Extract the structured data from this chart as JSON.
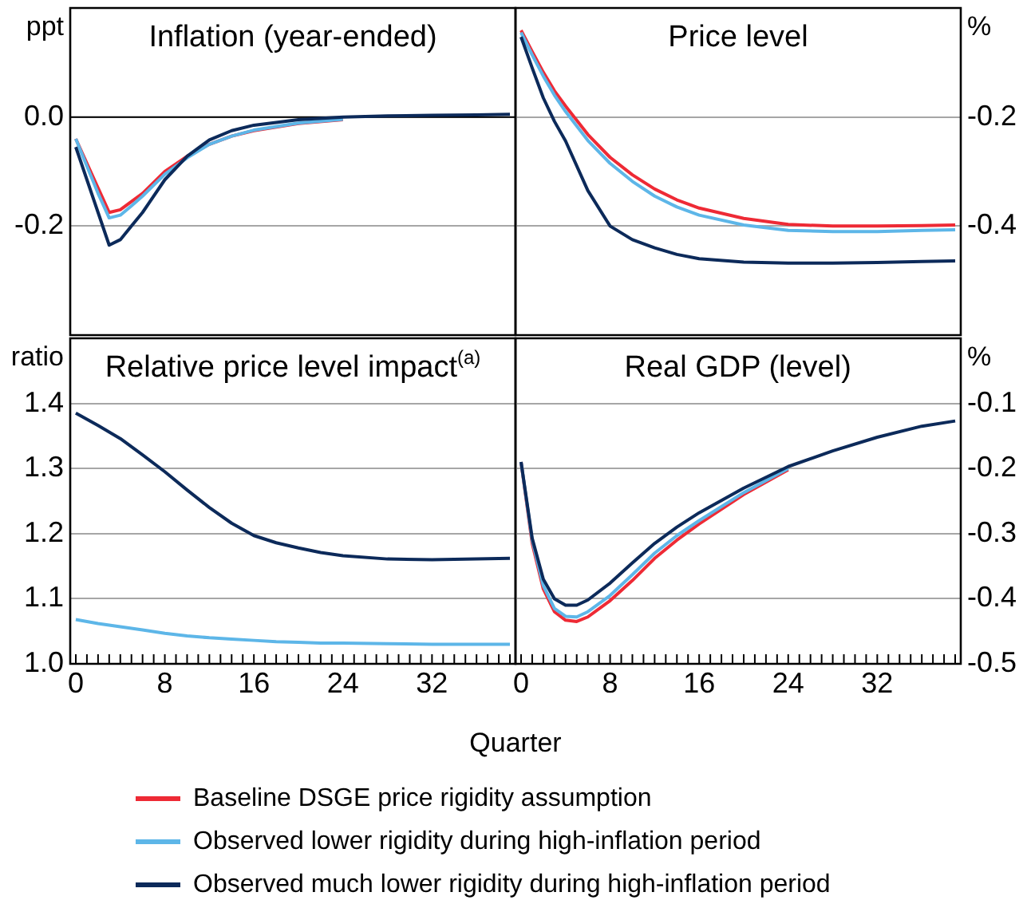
{
  "chart_data": [
    {
      "type": "line",
      "title": "Inflation (year-ended)",
      "ylabel": "ppt",
      "tick_labels": "y",
      "grid": "y",
      "legend": "bottom",
      "marker": "none",
      "xlim": [
        -0.5,
        39.5
      ],
      "ylim": [
        -0.4,
        0.2
      ],
      "yticks": [
        {
          "value": 0,
          "label": "0.0"
        },
        -0.2
      ],
      "ref_lines": [
        {
          "axis": "y",
          "value": 0,
          "color": "#000000"
        }
      ],
      "x": [
        0,
        1,
        2,
        3,
        4,
        5,
        6,
        8,
        10,
        12,
        14,
        16,
        20,
        24,
        28,
        32,
        36,
        39
      ],
      "series": [
        {
          "name": "Baseline DSGE price rigidity assumption",
          "color": "#ee2a35",
          "values": [
            -0.04,
            -0.085,
            -0.13,
            -0.175,
            -0.17,
            -0.155,
            -0.14,
            -0.1,
            -0.072,
            -0.05,
            -0.035,
            -0.025,
            -0.012,
            -0.005,
            null,
            null,
            null,
            null
          ]
        },
        {
          "name": "Observed lower rigidity during high-inflation period",
          "color": "#5db6e8",
          "values": [
            -0.04,
            -0.09,
            -0.14,
            -0.185,
            -0.18,
            -0.163,
            -0.145,
            -0.105,
            -0.075,
            -0.05,
            -0.035,
            -0.024,
            -0.011,
            -0.004,
            null,
            null,
            null,
            null
          ]
        },
        {
          "name": "Observed much lower rigidity during high-inflation period",
          "color": "#0c2a5a",
          "values": [
            -0.055,
            -0.115,
            -0.175,
            -0.235,
            -0.225,
            -0.2,
            -0.175,
            -0.115,
            -0.072,
            -0.042,
            -0.025,
            -0.015,
            -0.005,
            0,
            0.002,
            0.003,
            0.004,
            0.005
          ]
        }
      ]
    },
    {
      "type": "line",
      "title": "Price level",
      "y2label": "%",
      "tick_labels": "y",
      "grid": "y",
      "marker": "none",
      "xlim": [
        -0.5,
        39.5
      ],
      "y2lim": [
        -0.6,
        0
      ],
      "y2ticks": [
        -0.2,
        -0.4
      ],
      "x": [
        0,
        1,
        2,
        3,
        4,
        6,
        8,
        10,
        12,
        14,
        16,
        20,
        24,
        28,
        32,
        36,
        39
      ],
      "series": [
        {
          "axis": "y2",
          "color": "#ee2a35",
          "values": [
            -0.041,
            -0.08,
            -0.118,
            -0.152,
            -0.18,
            -0.232,
            -0.274,
            -0.306,
            -0.332,
            -0.352,
            -0.367,
            -0.386,
            -0.397,
            -0.4,
            -0.4,
            -0.399,
            -0.398
          ]
        },
        {
          "axis": "y2",
          "color": "#5db6e8",
          "values": [
            -0.045,
            -0.086,
            -0.125,
            -0.16,
            -0.19,
            -0.243,
            -0.285,
            -0.318,
            -0.345,
            -0.365,
            -0.38,
            -0.398,
            -0.408,
            -0.41,
            -0.41,
            -0.408,
            -0.407
          ]
        },
        {
          "axis": "y2",
          "color": "#0c2a5a",
          "values": [
            -0.053,
            -0.11,
            -0.165,
            -0.208,
            -0.244,
            -0.335,
            -0.4,
            -0.425,
            -0.44,
            -0.452,
            -0.46,
            -0.466,
            -0.468,
            -0.468,
            -0.467,
            -0.465,
            -0.464
          ]
        }
      ]
    },
    {
      "type": "line",
      "title": "Relative price level impact$^{(a)}$",
      "ylabel": "ratio",
      "xlabel": "Quarter",
      "grid": "y",
      "marker": "none",
      "xlim": [
        -0.5,
        39.5
      ],
      "xticks": [
        0,
        {
          "value": 1,
          "label": null
        },
        {
          "value": 2,
          "label": null
        },
        {
          "value": 3,
          "label": null
        },
        {
          "value": 4,
          "label": null
        },
        {
          "value": 5,
          "label": null
        },
        {
          "value": 6,
          "label": null
        },
        {
          "value": 7,
          "label": null
        },
        8,
        {
          "value": 9,
          "label": null
        },
        {
          "value": 10,
          "label": null
        },
        {
          "value": 11,
          "label": null
        },
        {
          "value": 12,
          "label": null
        },
        {
          "value": 13,
          "label": null
        },
        {
          "value": 14,
          "label": null
        },
        {
          "value": 15,
          "label": null
        },
        16,
        {
          "value": 17,
          "label": null
        },
        {
          "value": 18,
          "label": null
        },
        {
          "value": 19,
          "label": null
        },
        {
          "value": 20,
          "label": null
        },
        {
          "value": 21,
          "label": null
        },
        {
          "value": 22,
          "label": null
        },
        {
          "value": 23,
          "label": null
        },
        24,
        {
          "value": 25,
          "label": null
        },
        {
          "value": 26,
          "label": null
        },
        {
          "value": 27,
          "label": null
        },
        {
          "value": 28,
          "label": null
        },
        {
          "value": 29,
          "label": null
        },
        {
          "value": 30,
          "label": null
        },
        {
          "value": 31,
          "label": null
        },
        32,
        {
          "value": 33,
          "label": null
        },
        {
          "value": 34,
          "label": null
        },
        {
          "value": 35,
          "label": null
        },
        {
          "value": 36,
          "label": null
        },
        {
          "value": 37,
          "label": null
        },
        {
          "value": 38,
          "label": null
        },
        {
          "value": 39,
          "label": null
        }
      ],
      "ylim": [
        1.0,
        1.5
      ],
      "yticks": [
        {
          "value": 1.0,
          "label": "1.0"
        },
        1.1,
        1.2,
        1.3,
        1.4
      ],
      "x": [
        0,
        2,
        4,
        6,
        8,
        10,
        12,
        14,
        16,
        18,
        20,
        22,
        24,
        28,
        32,
        36,
        39
      ],
      "series": [
        {
          "color": "#0c2a5a",
          "values": [
            1.385,
            1.366,
            1.346,
            1.321,
            1.295,
            1.267,
            1.24,
            1.216,
            1.197,
            1.186,
            1.178,
            1.171,
            1.166,
            1.161,
            1.16,
            1.161,
            1.162
          ]
        },
        {
          "color": "#5db6e8",
          "values": [
            1.068,
            1.062,
            1.057,
            1.052,
            1.047,
            1.043,
            1.04,
            1.038,
            1.036,
            1.034,
            1.033,
            1.032,
            1.032,
            1.031,
            1.03,
            1.03,
            1.03
          ]
        }
      ]
    },
    {
      "type": "line",
      "title": "Real GDP (level)",
      "y2label": "%",
      "grid": "y",
      "marker": "none",
      "xlim": [
        -0.5,
        39.5
      ],
      "xticks": [
        0,
        {
          "value": 1,
          "label": null
        },
        {
          "value": 2,
          "label": null
        },
        {
          "value": 3,
          "label": null
        },
        {
          "value": 4,
          "label": null
        },
        {
          "value": 5,
          "label": null
        },
        {
          "value": 6,
          "label": null
        },
        {
          "value": 7,
          "label": null
        },
        8,
        {
          "value": 9,
          "label": null
        },
        {
          "value": 10,
          "label": null
        },
        {
          "value": 11,
          "label": null
        },
        {
          "value": 12,
          "label": null
        },
        {
          "value": 13,
          "label": null
        },
        {
          "value": 14,
          "label": null
        },
        {
          "value": 15,
          "label": null
        },
        16,
        {
          "value": 17,
          "label": null
        },
        {
          "value": 18,
          "label": null
        },
        {
          "value": 19,
          "label": null
        },
        {
          "value": 20,
          "label": null
        },
        {
          "value": 21,
          "label": null
        },
        {
          "value": 22,
          "label": null
        },
        {
          "value": 23,
          "label": null
        },
        24,
        {
          "value": 25,
          "label": null
        },
        {
          "value": 26,
          "label": null
        },
        {
          "value": 27,
          "label": null
        },
        {
          "value": 28,
          "label": null
        },
        {
          "value": 29,
          "label": null
        },
        {
          "value": 30,
          "label": null
        },
        {
          "value": 31,
          "label": null
        },
        32,
        {
          "value": 33,
          "label": null
        },
        {
          "value": 34,
          "label": null
        },
        {
          "value": 35,
          "label": null
        },
        {
          "value": 36,
          "label": null
        },
        {
          "value": 37,
          "label": null
        },
        {
          "value": 38,
          "label": null
        },
        {
          "value": 39,
          "label": null
        }
      ],
      "y2lim": [
        -0.5,
        0
      ],
      "y2ticks": [
        -0.5,
        -0.4,
        -0.3,
        -0.2,
        -0.1
      ],
      "x": [
        0,
        1,
        2,
        3,
        4,
        5,
        6,
        8,
        10,
        12,
        14,
        16,
        20,
        24,
        28,
        32,
        36,
        39
      ],
      "series": [
        {
          "axis": "y2",
          "color": "#ee2a35",
          "values": [
            -0.19,
            -0.315,
            -0.385,
            -0.42,
            -0.433,
            -0.435,
            -0.428,
            -0.403,
            -0.372,
            -0.338,
            -0.31,
            -0.285,
            -0.24,
            -0.202,
            null,
            null,
            null,
            null
          ]
        },
        {
          "axis": "y2",
          "color": "#5db6e8",
          "values": [
            -0.19,
            -0.31,
            -0.38,
            -0.415,
            -0.427,
            -0.428,
            -0.42,
            -0.395,
            -0.363,
            -0.33,
            -0.303,
            -0.28,
            -0.237,
            -0.2,
            null,
            null,
            null,
            null
          ]
        },
        {
          "axis": "y2",
          "color": "#0c2a5a",
          "values": [
            -0.19,
            -0.307,
            -0.37,
            -0.4,
            -0.41,
            -0.41,
            -0.402,
            -0.376,
            -0.345,
            -0.315,
            -0.29,
            -0.268,
            -0.23,
            -0.197,
            -0.173,
            -0.152,
            -0.135,
            -0.127
          ]
        }
      ]
    }
  ]
}
